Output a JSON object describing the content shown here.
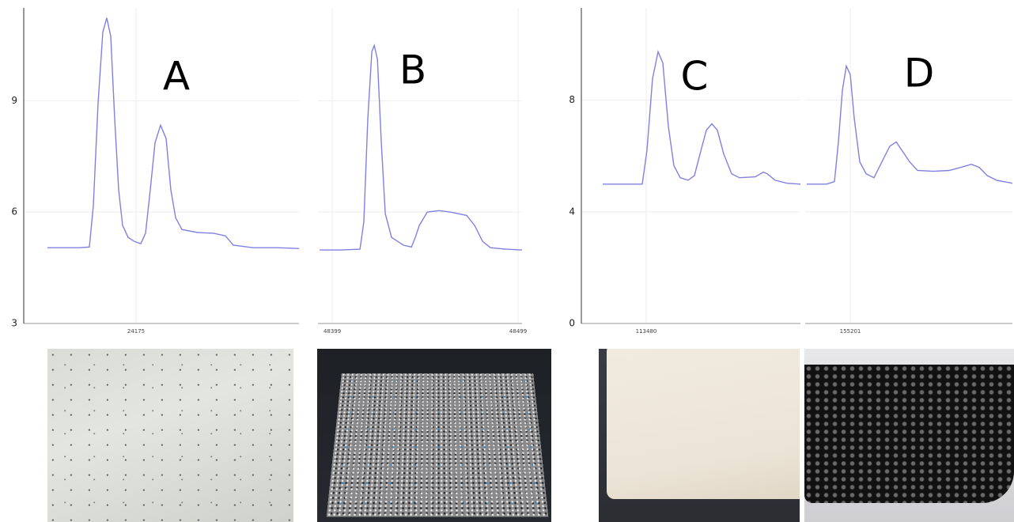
{
  "chart_data": [
    {
      "type": "line",
      "title": "A",
      "ylim": [
        3,
        11.5
      ],
      "yticks": [
        3,
        6,
        9
      ],
      "show_ytick_labels": true,
      "xlim": [
        24104,
        24278
      ],
      "xticks": [
        24175
      ],
      "grid": true,
      "series": [
        {
          "color": "#8080e0",
          "x": [
            24119,
            24129,
            24139,
            24145.5,
            24148,
            24151,
            24154,
            24156.5,
            24159,
            24161.5,
            24164,
            24166.5,
            24170,
            24174,
            24178,
            24181,
            24184,
            24187,
            24190.5,
            24194,
            24197,
            24200,
            24204,
            24214,
            24224,
            24231.5,
            24236.5,
            24249,
            24264,
            24278
          ],
          "values": [
            5.04,
            5.04,
            5.04,
            5.06,
            6.17,
            8.94,
            10.85,
            11.23,
            10.74,
            8.51,
            6.6,
            5.64,
            5.32,
            5.21,
            5.15,
            5.43,
            6.6,
            7.87,
            8.34,
            7.98,
            6.6,
            5.85,
            5.53,
            5.45,
            5.43,
            5.36,
            5.11,
            5.04,
            5.04,
            5.02
          ]
        }
      ]
    },
    {
      "type": "line",
      "title": "B",
      "ylim": [
        3,
        11.5
      ],
      "yticks": [
        3,
        6,
        9
      ],
      "show_ytick_labels": false,
      "xlim": [
        48391.3,
        48501.1
      ],
      "xticks": [
        48399,
        48499
      ],
      "grid": true,
      "series": [
        {
          "color": "#8080e0",
          "x": [
            48392.2,
            48403.3,
            48413.9,
            48416,
            48418.1,
            48420.3,
            48421.6,
            48423.3,
            48425.4,
            48427.5,
            48430.9,
            48437.3,
            48441.6,
            48443.7,
            48445.8,
            48450.1,
            48456.4,
            48462.8,
            48471.3,
            48475.6,
            48479.9,
            48484.1,
            48492.6,
            48501.1
          ],
          "values": [
            4.98,
            4.98,
            5.0,
            5.74,
            8.51,
            10.32,
            10.49,
            10.11,
            7.87,
            5.96,
            5.32,
            5.11,
            5.06,
            5.32,
            5.64,
            6.0,
            6.04,
            6.0,
            5.91,
            5.64,
            5.21,
            5.04,
            5.0,
            4.98
          ]
        }
      ]
    },
    {
      "type": "line",
      "title": "C",
      "ylim": [
        0,
        11.3
      ],
      "yticks": [
        0,
        4,
        8
      ],
      "show_ytick_labels": true,
      "xlim": [
        113439,
        113577.5
      ],
      "xticks": [
        113480
      ],
      "grid": true,
      "series": [
        {
          "color": "#8080e0",
          "x": [
            113452.5,
            113466.5,
            113477.5,
            113480.5,
            113484,
            113487.5,
            113490.5,
            113494,
            113497.5,
            113501.5,
            113506.5,
            113510.5,
            113514,
            113518,
            113521.5,
            113525,
            113529,
            113534,
            113539,
            113549,
            113554,
            113556.5,
            113561.5,
            113569,
            113577.5
          ],
          "values": [
            4.99,
            4.99,
            4.99,
            6.21,
            8.77,
            9.73,
            9.33,
            7.06,
            5.65,
            5.22,
            5.13,
            5.3,
            6.07,
            6.92,
            7.15,
            6.92,
            6.07,
            5.36,
            5.22,
            5.25,
            5.42,
            5.36,
            5.13,
            5.02,
            4.99
          ]
        }
      ]
    },
    {
      "type": "line",
      "title": "D",
      "ylim": [
        0,
        11.3
      ],
      "yticks": [
        0,
        4,
        8
      ],
      "show_ytick_labels": false,
      "xlim": [
        155172.5,
        155303.5
      ],
      "xticks": [
        155201
      ],
      "grid": true,
      "series": [
        {
          "color": "#8080e0",
          "x": [
            155173.5,
            155186,
            155191,
            155193.5,
            155196,
            155198.5,
            155201,
            155203.5,
            155207,
            155211,
            155216,
            155221,
            155226,
            155230,
            155233.5,
            155238.5,
            155243.5,
            155253.5,
            155263.5,
            155271,
            155277.5,
            155282.5,
            155287.5,
            155293.5,
            155303.5
          ],
          "values": [
            4.99,
            4.99,
            5.08,
            6.5,
            8.34,
            9.22,
            8.91,
            7.35,
            5.79,
            5.36,
            5.22,
            5.79,
            6.35,
            6.5,
            6.21,
            5.79,
            5.48,
            5.45,
            5.48,
            5.59,
            5.7,
            5.59,
            5.3,
            5.13,
            5.02
          ]
        }
      ]
    }
  ]
}
